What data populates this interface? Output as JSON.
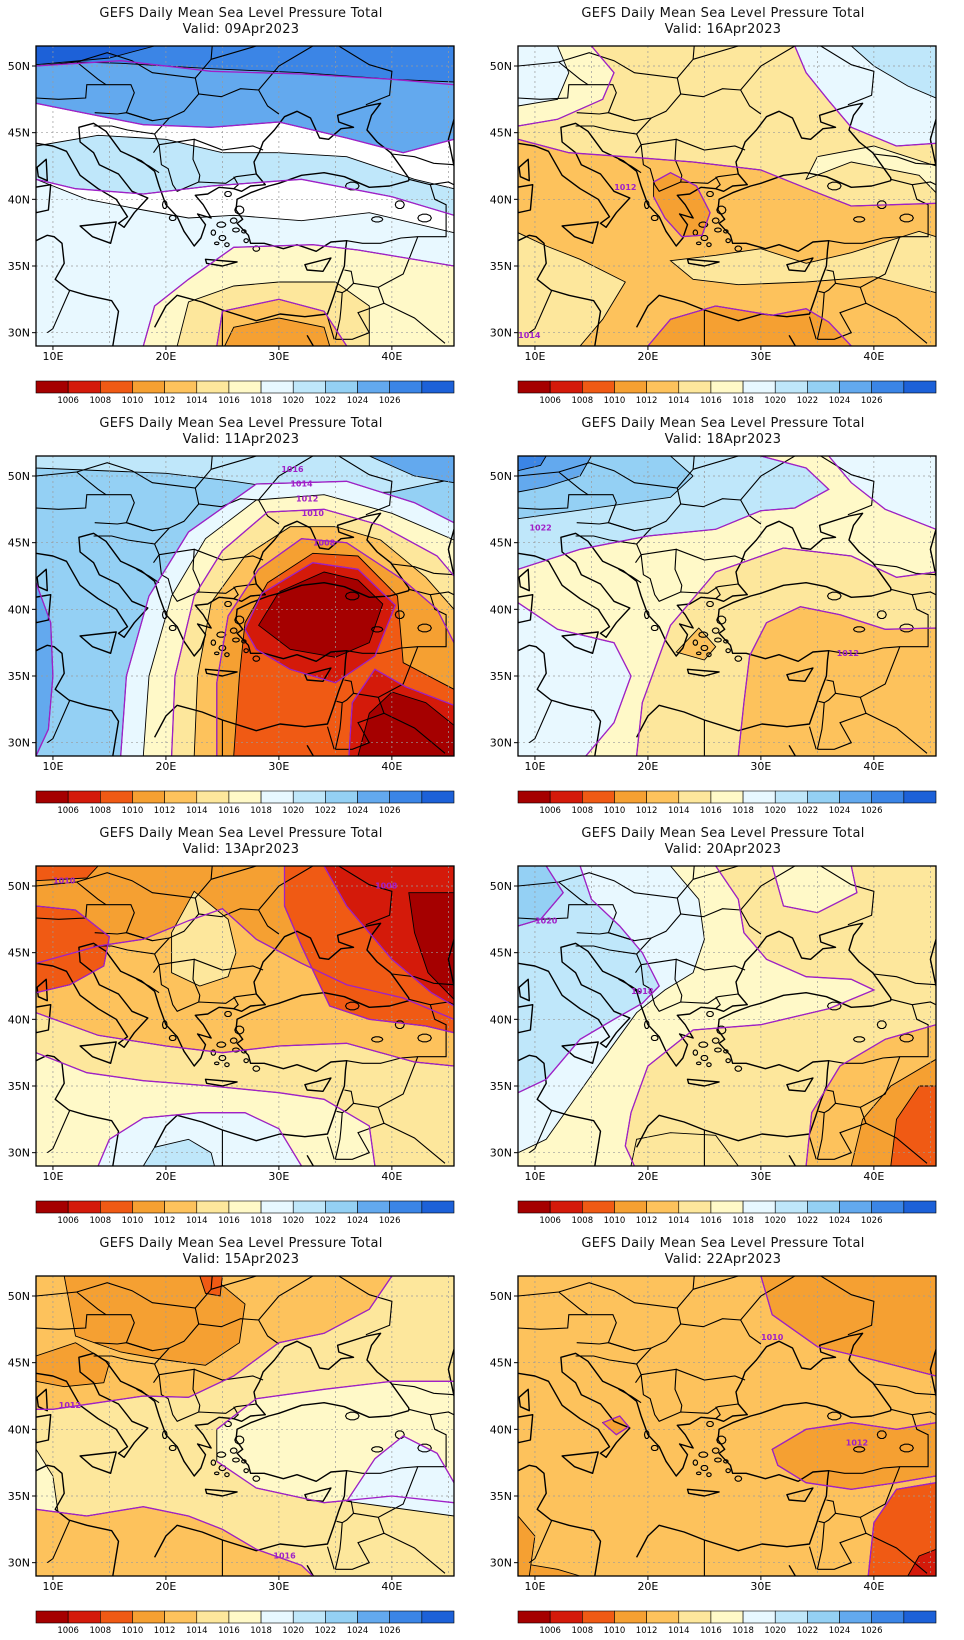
{
  "legend": {
    "levels": [
      "1006",
      "1008",
      "1010",
      "1012",
      "1014",
      "1016",
      "1018",
      "1020",
      "1022",
      "1024",
      "1026"
    ],
    "colors": [
      "#a50000",
      "#d41a0a",
      "#f05a14",
      "#f5a032",
      "#fdc25c",
      "#fde79c",
      "#fff9c8",
      "#e8f8ff",
      "#bfe7fa",
      "#94d0f4",
      "#63a9ee",
      "#3b85e6",
      "#1d61d8"
    ]
  },
  "axes": {
    "lon_labels": [
      "10E",
      "20E",
      "30E",
      "40E"
    ],
    "lat_labels": [
      "50N",
      "45N",
      "40N",
      "35N",
      "30N"
    ]
  },
  "colors": {
    "contour": "#a020c8",
    "coast": "#000000",
    "grid": "#9a9a9a",
    "frame": "#000000"
  },
  "panels": [
    {
      "title": "GEFS Daily Mean Sea Level Pressure Total",
      "valid": "Valid: 09Apr2023",
      "contour_labels": []
    },
    {
      "title": "GEFS Daily Mean Sea Level Pressure Total",
      "valid": "Valid: 16Apr2023",
      "contour_labels": [
        "1012",
        "1014"
      ]
    },
    {
      "title": "GEFS Daily Mean Sea Level Pressure Total",
      "valid": "Valid: 11Apr2023",
      "contour_labels": [
        "1016",
        "1014",
        "1012",
        "1010",
        "1008"
      ]
    },
    {
      "title": "GEFS Daily Mean Sea Level Pressure Total",
      "valid": "Valid: 18Apr2023",
      "contour_labels": [
        "1022",
        "1012"
      ]
    },
    {
      "title": "GEFS Daily Mean Sea Level Pressure Total",
      "valid": "Valid: 13Apr2023",
      "contour_labels": [
        "1010",
        "1008"
      ]
    },
    {
      "title": "GEFS Daily Mean Sea Level Pressure Total",
      "valid": "Valid: 20Apr2023",
      "contour_labels": [
        "1020",
        "1018"
      ]
    },
    {
      "title": "GEFS Daily Mean Sea Level Pressure Total",
      "valid": "Valid: 15Apr2023",
      "contour_labels": [
        "1012",
        "1016"
      ]
    },
    {
      "title": "GEFS Daily Mean Sea Level Pressure Total",
      "valid": "Valid: 22Apr2023",
      "contour_labels": [
        "1010",
        "1012"
      ]
    }
  ]
}
